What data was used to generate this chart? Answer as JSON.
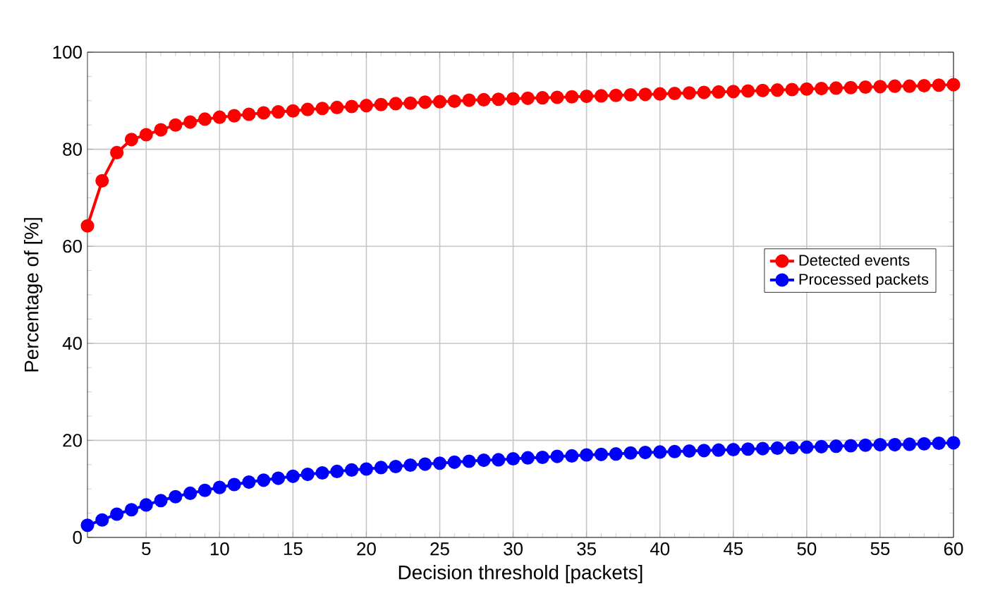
{
  "chart_data": {
    "type": "line",
    "xlabel": "Decision threshold [packets]",
    "ylabel": "Percentage of [%]",
    "x": [
      1,
      2,
      3,
      4,
      5,
      6,
      7,
      8,
      9,
      10,
      11,
      12,
      13,
      14,
      15,
      16,
      17,
      18,
      19,
      20,
      21,
      22,
      23,
      24,
      25,
      26,
      27,
      28,
      29,
      30,
      31,
      32,
      33,
      34,
      35,
      36,
      37,
      38,
      39,
      40,
      41,
      42,
      43,
      44,
      45,
      46,
      47,
      48,
      49,
      50,
      51,
      52,
      53,
      54,
      55,
      56,
      57,
      58,
      59,
      60
    ],
    "series": [
      {
        "name": "Detected events",
        "color": "#ff0000",
        "values": [
          64.2,
          73.5,
          79.3,
          82.0,
          83.0,
          84.0,
          85.0,
          85.6,
          86.2,
          86.6,
          86.9,
          87.2,
          87.5,
          87.7,
          87.9,
          88.2,
          88.4,
          88.6,
          88.8,
          89.0,
          89.2,
          89.4,
          89.5,
          89.7,
          89.8,
          89.9,
          90.1,
          90.2,
          90.3,
          90.4,
          90.5,
          90.6,
          90.7,
          90.8,
          90.9,
          91.0,
          91.1,
          91.2,
          91.3,
          91.4,
          91.5,
          91.6,
          91.7,
          91.8,
          91.9,
          92.0,
          92.1,
          92.2,
          92.3,
          92.4,
          92.5,
          92.6,
          92.7,
          92.8,
          92.9,
          93.0,
          93.0,
          93.1,
          93.2,
          93.3
        ]
      },
      {
        "name": "Processed packets",
        "color": "#0000ff",
        "values": [
          2.5,
          3.6,
          4.8,
          5.7,
          6.7,
          7.6,
          8.4,
          9.1,
          9.7,
          10.3,
          10.9,
          11.4,
          11.8,
          12.2,
          12.6,
          13.0,
          13.3,
          13.6,
          13.9,
          14.1,
          14.4,
          14.6,
          14.9,
          15.1,
          15.3,
          15.5,
          15.7,
          15.9,
          16.0,
          16.2,
          16.4,
          16.5,
          16.7,
          16.8,
          17.0,
          17.1,
          17.2,
          17.4,
          17.5,
          17.6,
          17.7,
          17.8,
          17.9,
          18.0,
          18.1,
          18.2,
          18.3,
          18.4,
          18.5,
          18.6,
          18.7,
          18.8,
          18.9,
          19.0,
          19.1,
          19.1,
          19.2,
          19.3,
          19.4,
          19.5
        ]
      }
    ],
    "xlim": [
      1,
      60
    ],
    "xticks": [
      5,
      10,
      15,
      20,
      25,
      30,
      35,
      40,
      45,
      50,
      55,
      60
    ],
    "ylim": [
      0,
      100
    ],
    "yticks": [
      0,
      20,
      40,
      60,
      80,
      100
    ],
    "grid": true,
    "legend": "right",
    "marker": "circle",
    "line_style": "solid"
  }
}
